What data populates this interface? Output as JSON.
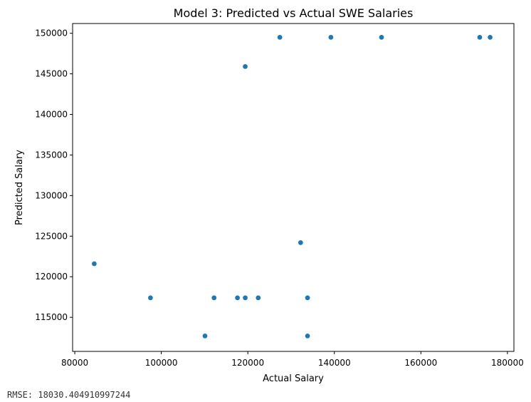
{
  "chart_data": {
    "type": "scatter",
    "title": "Model 3: Predicted vs Actual SWE Salaries",
    "xlabel": "Actual Salary",
    "ylabel": "Predicted Salary",
    "xlim": [
      79500,
      181500
    ],
    "ylim": [
      110800,
      151200
    ],
    "x_ticks": [
      80000,
      100000,
      120000,
      140000,
      160000,
      180000
    ],
    "x_tick_labels": [
      "80000",
      "100000",
      "120000",
      "140000",
      "160000",
      "180000"
    ],
    "y_ticks": [
      115000,
      120000,
      125000,
      130000,
      135000,
      140000,
      145000,
      150000
    ],
    "y_tick_labels": [
      "115000",
      "120000",
      "125000",
      "130000",
      "135000",
      "140000",
      "145000",
      "150000"
    ],
    "grid": false,
    "marker_color": "#1f77b4",
    "points": [
      {
        "x": 84500,
        "y": 121600
      },
      {
        "x": 97500,
        "y": 117400
      },
      {
        "x": 110100,
        "y": 112700
      },
      {
        "x": 112200,
        "y": 117400
      },
      {
        "x": 117600,
        "y": 117400
      },
      {
        "x": 119400,
        "y": 117400
      },
      {
        "x": 119400,
        "y": 145900
      },
      {
        "x": 122400,
        "y": 117400
      },
      {
        "x": 127400,
        "y": 149500
      },
      {
        "x": 132200,
        "y": 124200
      },
      {
        "x": 133800,
        "y": 117400
      },
      {
        "x": 133800,
        "y": 112700
      },
      {
        "x": 139200,
        "y": 149500
      },
      {
        "x": 150900,
        "y": 149500
      },
      {
        "x": 173600,
        "y": 149500
      },
      {
        "x": 176000,
        "y": 149500
      }
    ]
  },
  "footer": {
    "rmse_text": "RMSE: 18030.404910997244"
  }
}
